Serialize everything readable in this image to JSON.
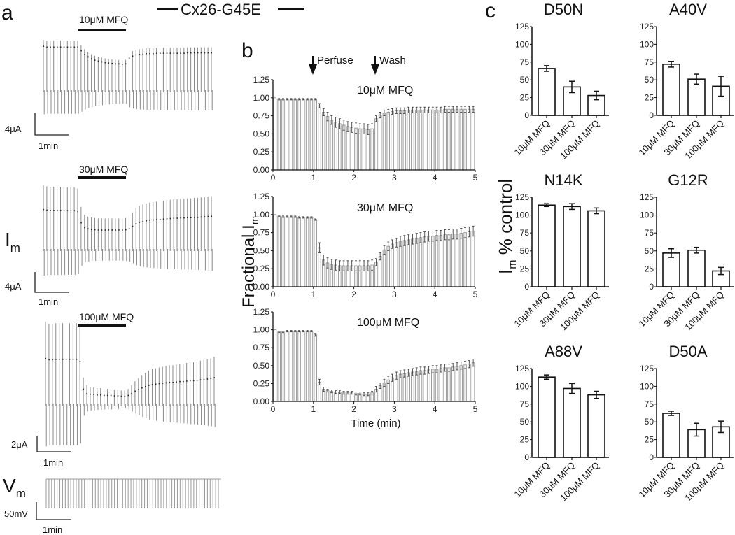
{
  "figure": {
    "header_title": "Cx26-G45E",
    "panel_a": {
      "letter": "a",
      "traces": [
        {
          "drug": "10μM MFQ",
          "current_scale": "4μA",
          "time_scale": "1min"
        },
        {
          "drug": "30μM MFQ",
          "current_scale": "4μA",
          "time_scale": "1min"
        },
        {
          "drug": "100μM MFQ",
          "current_scale": "2μA",
          "time_scale": "1min"
        }
      ],
      "im_label": "I",
      "im_sub": "m",
      "vm_label": "V",
      "vm_sub": "m",
      "vm_scale": "50mV",
      "vm_time_scale": "1min"
    },
    "panel_b": {
      "letter": "b",
      "perfuse_label": "Perfuse",
      "wash_label": "Wash",
      "ylabel": "Fractional I",
      "ylabel_sub": "m",
      "xlabel": "Time (min)"
    },
    "panel_c": {
      "letter": "c",
      "ylabel": "I",
      "ylabel_sub": "m",
      "ylabel_rest": " % control"
    }
  },
  "chart_data": [
    {
      "type": "bar",
      "panel": "b",
      "title": "10μM MFQ",
      "xlabel": "Time (min)",
      "ylabel": "Fractional Im",
      "xlim": [
        0,
        5
      ],
      "ylim": [
        0,
        1.25
      ],
      "x_ticks": [
        "0",
        "1",
        "2",
        "3",
        "4",
        "5"
      ],
      "y_ticks": [
        "0.00",
        "0.25",
        "0.50",
        "0.75",
        "1.00",
        "1.25"
      ],
      "annotations": [
        {
          "text": "Perfuse",
          "x": 1.0
        },
        {
          "text": "Wash",
          "x": 2.55
        }
      ],
      "x": [
        0.1,
        0.2,
        0.3,
        0.4,
        0.5,
        0.6,
        0.7,
        0.8,
        0.9,
        1.0,
        1.1,
        1.2,
        1.3,
        1.4,
        1.5,
        1.6,
        1.7,
        1.8,
        1.9,
        2.0,
        2.1,
        2.2,
        2.3,
        2.4,
        2.5,
        2.6,
        2.7,
        2.8,
        2.9,
        3.0,
        3.1,
        3.2,
        3.3,
        3.4,
        3.5,
        3.6,
        3.7,
        3.8,
        3.9,
        4.0,
        4.1,
        4.2,
        4.3,
        4.4,
        4.5,
        4.6,
        4.7,
        4.8,
        4.9,
        5.0
      ],
      "values": [
        1.0,
        0.98,
        0.98,
        0.98,
        0.98,
        0.98,
        0.98,
        0.98,
        0.98,
        0.98,
        0.98,
        0.89,
        0.8,
        0.74,
        0.69,
        0.66,
        0.64,
        0.62,
        0.6,
        0.59,
        0.58,
        0.57,
        0.57,
        0.56,
        0.57,
        0.71,
        0.76,
        0.79,
        0.8,
        0.81,
        0.82,
        0.82,
        0.82,
        0.83,
        0.83,
        0.83,
        0.83,
        0.83,
        0.83,
        0.83,
        0.83,
        0.83,
        0.84,
        0.84,
        0.84,
        0.84,
        0.84,
        0.84,
        0.84,
        0.84
      ],
      "errors": [
        0.0,
        0.01,
        0.01,
        0.01,
        0.01,
        0.01,
        0.01,
        0.01,
        0.01,
        0.01,
        0.01,
        0.03,
        0.05,
        0.06,
        0.06,
        0.07,
        0.07,
        0.07,
        0.07,
        0.07,
        0.07,
        0.07,
        0.07,
        0.07,
        0.07,
        0.04,
        0.04,
        0.04,
        0.04,
        0.04,
        0.04,
        0.04,
        0.04,
        0.04,
        0.04,
        0.04,
        0.04,
        0.04,
        0.04,
        0.04,
        0.04,
        0.04,
        0.04,
        0.04,
        0.04,
        0.04,
        0.04,
        0.04,
        0.04,
        0.04
      ]
    },
    {
      "type": "bar",
      "panel": "b",
      "title": "30μM MFQ",
      "xlim": [
        0,
        5
      ],
      "ylim": [
        0,
        1.25
      ],
      "x_ticks": [
        "0",
        "1",
        "2",
        "3",
        "4",
        "5"
      ],
      "y_ticks": [
        "0.00",
        "0.25",
        "0.50",
        "0.75",
        "1.00",
        "1.25"
      ],
      "x": [
        0.1,
        0.2,
        0.3,
        0.4,
        0.5,
        0.6,
        0.7,
        0.8,
        0.9,
        1.0,
        1.1,
        1.2,
        1.3,
        1.4,
        1.5,
        1.6,
        1.7,
        1.8,
        1.9,
        2.0,
        2.1,
        2.2,
        2.3,
        2.4,
        2.5,
        2.6,
        2.7,
        2.8,
        2.9,
        3.0,
        3.1,
        3.2,
        3.3,
        3.4,
        3.5,
        3.6,
        3.7,
        3.8,
        3.9,
        4.0,
        4.1,
        4.2,
        4.3,
        4.4,
        4.5,
        4.6,
        4.7,
        4.8,
        4.9,
        5.0
      ],
      "values": [
        1.0,
        0.98,
        0.97,
        0.97,
        0.97,
        0.97,
        0.96,
        0.96,
        0.96,
        0.96,
        0.93,
        0.54,
        0.37,
        0.33,
        0.31,
        0.3,
        0.29,
        0.29,
        0.29,
        0.29,
        0.29,
        0.29,
        0.29,
        0.29,
        0.3,
        0.34,
        0.42,
        0.51,
        0.56,
        0.59,
        0.61,
        0.63,
        0.64,
        0.65,
        0.66,
        0.67,
        0.68,
        0.69,
        0.7,
        0.7,
        0.71,
        0.71,
        0.72,
        0.72,
        0.73,
        0.73,
        0.74,
        0.75,
        0.76,
        0.77
      ],
      "errors": [
        0.0,
        0.01,
        0.01,
        0.01,
        0.01,
        0.01,
        0.01,
        0.01,
        0.01,
        0.01,
        0.01,
        0.07,
        0.07,
        0.07,
        0.07,
        0.07,
        0.07,
        0.07,
        0.07,
        0.07,
        0.07,
        0.07,
        0.07,
        0.07,
        0.07,
        0.05,
        0.05,
        0.06,
        0.06,
        0.06,
        0.06,
        0.07,
        0.07,
        0.07,
        0.07,
        0.07,
        0.07,
        0.07,
        0.07,
        0.07,
        0.07,
        0.07,
        0.07,
        0.07,
        0.07,
        0.07,
        0.07,
        0.07,
        0.07,
        0.07
      ]
    },
    {
      "type": "bar",
      "panel": "b",
      "title": "100μM MFQ",
      "xlabel": "Time (min)",
      "xlim": [
        0,
        5
      ],
      "ylim": [
        0,
        1.25
      ],
      "x_ticks": [
        "0",
        "1",
        "2",
        "3",
        "4",
        "5"
      ],
      "y_ticks": [
        "0.00",
        "0.25",
        "0.50",
        "0.75",
        "1.00",
        "1.25"
      ],
      "x": [
        0.1,
        0.2,
        0.3,
        0.4,
        0.5,
        0.6,
        0.7,
        0.8,
        0.9,
        1.0,
        1.1,
        1.2,
        1.3,
        1.4,
        1.5,
        1.6,
        1.7,
        1.8,
        1.9,
        2.0,
        2.1,
        2.2,
        2.3,
        2.4,
        2.5,
        2.6,
        2.7,
        2.8,
        2.9,
        3.0,
        3.1,
        3.2,
        3.3,
        3.4,
        3.5,
        3.6,
        3.7,
        3.8,
        3.9,
        4.0,
        4.1,
        4.2,
        4.3,
        4.4,
        4.5,
        4.6,
        4.7,
        4.8,
        4.9,
        5.0
      ],
      "values": [
        1.0,
        0.97,
        0.97,
        0.98,
        0.98,
        0.98,
        0.98,
        0.98,
        0.98,
        0.98,
        0.93,
        0.27,
        0.17,
        0.15,
        0.14,
        0.13,
        0.13,
        0.12,
        0.12,
        0.12,
        0.11,
        0.11,
        0.1,
        0.1,
        0.12,
        0.17,
        0.22,
        0.26,
        0.3,
        0.33,
        0.36,
        0.38,
        0.39,
        0.4,
        0.41,
        0.42,
        0.43,
        0.43,
        0.44,
        0.45,
        0.45,
        0.46,
        0.47,
        0.47,
        0.48,
        0.49,
        0.5,
        0.51,
        0.52,
        0.54
      ],
      "errors": [
        0.0,
        0.01,
        0.01,
        0.01,
        0.01,
        0.01,
        0.01,
        0.01,
        0.01,
        0.01,
        0.02,
        0.04,
        0.03,
        0.02,
        0.02,
        0.02,
        0.02,
        0.02,
        0.02,
        0.02,
        0.02,
        0.02,
        0.02,
        0.02,
        0.02,
        0.04,
        0.04,
        0.05,
        0.05,
        0.05,
        0.05,
        0.05,
        0.05,
        0.05,
        0.05,
        0.05,
        0.05,
        0.05,
        0.05,
        0.05,
        0.05,
        0.05,
        0.05,
        0.05,
        0.05,
        0.05,
        0.05,
        0.05,
        0.05,
        0.05
      ]
    },
    {
      "type": "bar",
      "panel": "c",
      "title": "D50N",
      "categories": [
        "10μM MFQ",
        "30μM MFQ",
        "100μM MFQ"
      ],
      "values": [
        66,
        40,
        28
      ],
      "errors": [
        4,
        8,
        6
      ],
      "ylim": [
        0,
        125
      ],
      "y_ticks": [
        "0",
        "25",
        "50",
        "75",
        "100",
        "125"
      ],
      "ylabel": "Im % control"
    },
    {
      "type": "bar",
      "panel": "c",
      "title": "A40V",
      "categories": [
        "10μM MFQ",
        "30μM MFQ",
        "100μM MFQ"
      ],
      "values": [
        72,
        51,
        41
      ],
      "errors": [
        4,
        7,
        14
      ],
      "ylim": [
        0,
        125
      ],
      "y_ticks": [
        "0",
        "25",
        "50",
        "75",
        "100",
        "125"
      ]
    },
    {
      "type": "bar",
      "panel": "c",
      "title": "N14K",
      "categories": [
        "10μM MFQ",
        "30μM MFQ",
        "100μM MFQ"
      ],
      "values": [
        114,
        112,
        106
      ],
      "errors": [
        2,
        4,
        4
      ],
      "ylim": [
        0,
        125
      ],
      "y_ticks": [
        "0",
        "25",
        "50",
        "75",
        "100",
        "125"
      ]
    },
    {
      "type": "bar",
      "panel": "c",
      "title": "G12R",
      "categories": [
        "10μM MFQ",
        "30μM MFQ",
        "100μM MFQ"
      ],
      "values": [
        47,
        51,
        22
      ],
      "errors": [
        6,
        4,
        5
      ],
      "ylim": [
        0,
        125
      ],
      "y_ticks": [
        "0",
        "25",
        "50",
        "75",
        "100",
        "125"
      ]
    },
    {
      "type": "bar",
      "panel": "c",
      "title": "A88V",
      "categories": [
        "10μM MFQ",
        "30μM MFQ",
        "100μM MFQ"
      ],
      "values": [
        113,
        97,
        88
      ],
      "errors": [
        3,
        7,
        5
      ],
      "ylim": [
        0,
        125
      ],
      "y_ticks": [
        "0",
        "25",
        "50",
        "75",
        "100",
        "125"
      ]
    },
    {
      "type": "bar",
      "panel": "c",
      "title": "D50A",
      "categories": [
        "10μM MFQ",
        "30μM MFQ",
        "100μM MFQ"
      ],
      "values": [
        62,
        39,
        43
      ],
      "errors": [
        3,
        9,
        8
      ],
      "ylim": [
        0,
        125
      ],
      "y_ticks": [
        "0",
        "25",
        "50",
        "75",
        "100",
        "125"
      ]
    }
  ]
}
